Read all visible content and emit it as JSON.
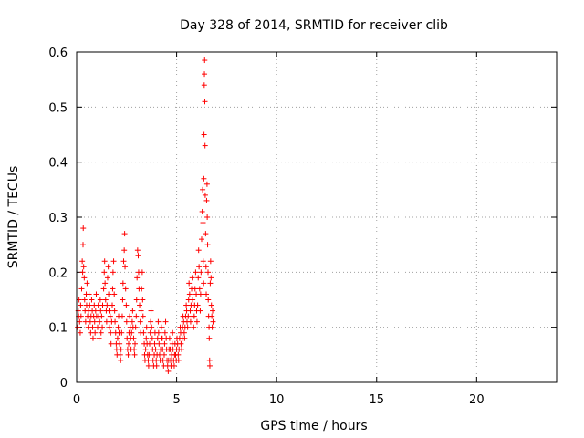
{
  "chart_data": {
    "type": "scatter",
    "title": "Day 328 of 2014, SRMTID for receiver clib",
    "xlabel": "GPS time / hours",
    "ylabel": "SRMTID / TECUs",
    "xlim": [
      0,
      24
    ],
    "ylim": [
      0,
      0.6
    ],
    "xticks": [
      "0",
      "5",
      "10",
      "15",
      "20"
    ],
    "xtick_values": [
      0,
      5,
      10,
      15,
      20
    ],
    "yticks": [
      "0",
      "0.1",
      "0.2",
      "0.3",
      "0.4",
      "0.5",
      "0.6"
    ],
    "ytick_values": [
      0,
      0.1,
      0.2,
      0.3,
      0.4,
      0.5,
      0.6
    ],
    "grid": true,
    "marker": "+",
    "color": "#ff0000",
    "series": [
      {
        "name": "SRMTID",
        "points": [
          [
            0.05,
            0.1
          ],
          [
            0.08,
            0.13
          ],
          [
            0.1,
            0.12
          ],
          [
            0.12,
            0.15
          ],
          [
            0.15,
            0.11
          ],
          [
            0.18,
            0.09
          ],
          [
            0.2,
            0.14
          ],
          [
            0.22,
            0.12
          ],
          [
            0.25,
            0.17
          ],
          [
            0.28,
            0.22
          ],
          [
            0.3,
            0.2
          ],
          [
            0.32,
            0.25
          ],
          [
            0.33,
            0.28
          ],
          [
            0.35,
            0.21
          ],
          [
            0.38,
            0.19
          ],
          [
            0.4,
            0.15
          ],
          [
            0.42,
            0.13
          ],
          [
            0.45,
            0.11
          ],
          [
            0.48,
            0.16
          ],
          [
            0.5,
            0.14
          ],
          [
            0.52,
            0.18
          ],
          [
            0.55,
            0.12
          ],
          [
            0.58,
            0.1
          ],
          [
            0.6,
            0.13
          ],
          [
            0.62,
            0.16
          ],
          [
            0.65,
            0.14
          ],
          [
            0.68,
            0.11
          ],
          [
            0.7,
            0.09
          ],
          [
            0.72,
            0.12
          ],
          [
            0.75,
            0.15
          ],
          [
            0.78,
            0.13
          ],
          [
            0.8,
            0.1
          ],
          [
            0.82,
            0.08
          ],
          [
            0.85,
            0.12
          ],
          [
            0.88,
            0.14
          ],
          [
            0.9,
            0.11
          ],
          [
            0.92,
            0.09
          ],
          [
            0.95,
            0.13
          ],
          [
            0.98,
            0.16
          ],
          [
            1.0,
            0.12
          ],
          [
            1.05,
            0.1
          ],
          [
            1.08,
            0.14
          ],
          [
            1.1,
            0.12
          ],
          [
            1.12,
            0.08
          ],
          [
            1.15,
            0.11
          ],
          [
            1.18,
            0.15
          ],
          [
            1.2,
            0.13
          ],
          [
            1.22,
            0.09
          ],
          [
            1.25,
            0.12
          ],
          [
            1.28,
            0.1
          ],
          [
            1.3,
            0.14
          ],
          [
            1.35,
            0.17
          ],
          [
            1.38,
            0.2
          ],
          [
            1.4,
            0.22
          ],
          [
            1.42,
            0.18
          ],
          [
            1.45,
            0.15
          ],
          [
            1.48,
            0.13
          ],
          [
            1.5,
            0.11
          ],
          [
            1.52,
            0.14
          ],
          [
            1.55,
            0.19
          ],
          [
            1.58,
            0.21
          ],
          [
            1.6,
            0.16
          ],
          [
            1.62,
            0.13
          ],
          [
            1.65,
            0.1
          ],
          [
            1.68,
            0.12
          ],
          [
            1.7,
            0.09
          ],
          [
            1.72,
            0.07
          ],
          [
            1.75,
            0.11
          ],
          [
            1.78,
            0.14
          ],
          [
            1.8,
            0.17
          ],
          [
            1.82,
            0.2
          ],
          [
            1.85,
            0.22
          ],
          [
            1.88,
            0.16
          ],
          [
            1.9,
            0.13
          ],
          [
            1.92,
            0.11
          ],
          [
            1.95,
            0.09
          ],
          [
            1.98,
            0.07
          ],
          [
            2.0,
            0.06
          ],
          [
            2.02,
            0.05
          ],
          [
            2.05,
            0.08
          ],
          [
            2.08,
            0.1
          ],
          [
            2.1,
            0.12
          ],
          [
            2.12,
            0.09
          ],
          [
            2.15,
            0.07
          ],
          [
            2.18,
            0.05
          ],
          [
            2.2,
            0.04
          ],
          [
            2.22,
            0.06
          ],
          [
            2.25,
            0.09
          ],
          [
            2.28,
            0.12
          ],
          [
            2.3,
            0.15
          ],
          [
            2.32,
            0.18
          ],
          [
            2.35,
            0.22
          ],
          [
            2.38,
            0.24
          ],
          [
            2.4,
            0.27
          ],
          [
            2.42,
            0.21
          ],
          [
            2.45,
            0.17
          ],
          [
            2.48,
            0.14
          ],
          [
            2.5,
            0.11
          ],
          [
            2.52,
            0.08
          ],
          [
            2.55,
            0.06
          ],
          [
            2.58,
            0.05
          ],
          [
            2.6,
            0.07
          ],
          [
            2.62,
            0.09
          ],
          [
            2.65,
            0.12
          ],
          [
            2.68,
            0.1
          ],
          [
            2.7,
            0.08
          ],
          [
            2.72,
            0.06
          ],
          [
            2.75,
            0.09
          ],
          [
            2.78,
            0.11
          ],
          [
            2.8,
            0.13
          ],
          [
            2.82,
            0.1
          ],
          [
            2.85,
            0.08
          ],
          [
            2.88,
            0.06
          ],
          [
            2.9,
            0.05
          ],
          [
            2.92,
            0.07
          ],
          [
            2.95,
            0.1
          ],
          [
            2.98,
            0.12
          ],
          [
            3.0,
            0.15
          ],
          [
            3.02,
            0.19
          ],
          [
            3.05,
            0.24
          ],
          [
            3.08,
            0.23
          ],
          [
            3.1,
            0.2
          ],
          [
            3.12,
            0.17
          ],
          [
            3.15,
            0.14
          ],
          [
            3.18,
            0.11
          ],
          [
            3.2,
            0.09
          ],
          [
            3.22,
            0.13
          ],
          [
            3.25,
            0.17
          ],
          [
            3.28,
            0.2
          ],
          [
            3.3,
            0.15
          ],
          [
            3.32,
            0.12
          ],
          [
            3.35,
            0.09
          ],
          [
            3.38,
            0.07
          ],
          [
            3.4,
            0.05
          ],
          [
            3.42,
            0.04
          ],
          [
            3.45,
            0.06
          ],
          [
            3.48,
            0.08
          ],
          [
            3.5,
            0.1
          ],
          [
            3.52,
            0.07
          ],
          [
            3.55,
            0.05
          ],
          [
            3.58,
            0.04
          ],
          [
            3.6,
            0.03
          ],
          [
            3.62,
            0.05
          ],
          [
            3.65,
            0.07
          ],
          [
            3.68,
            0.09
          ],
          [
            3.7,
            0.11
          ],
          [
            3.72,
            0.13
          ],
          [
            3.75,
            0.1
          ],
          [
            3.78,
            0.08
          ],
          [
            3.8,
            0.06
          ],
          [
            3.82,
            0.04
          ],
          [
            3.85,
            0.03
          ],
          [
            3.88,
            0.05
          ],
          [
            3.9,
            0.07
          ],
          [
            3.92,
            0.09
          ],
          [
            3.95,
            0.06
          ],
          [
            3.98,
            0.04
          ],
          [
            4.0,
            0.03
          ],
          [
            4.02,
            0.05
          ],
          [
            4.05,
            0.08
          ],
          [
            4.08,
            0.11
          ],
          [
            4.1,
            0.09
          ],
          [
            4.12,
            0.07
          ],
          [
            4.15,
            0.05
          ],
          [
            4.18,
            0.04
          ],
          [
            4.2,
            0.06
          ],
          [
            4.22,
            0.08
          ],
          [
            4.25,
            0.1
          ],
          [
            4.28,
            0.08
          ],
          [
            4.3,
            0.06
          ],
          [
            4.32,
            0.04
          ],
          [
            4.35,
            0.03
          ],
          [
            4.38,
            0.05
          ],
          [
            4.4,
            0.07
          ],
          [
            4.42,
            0.09
          ],
          [
            4.45,
            0.11
          ],
          [
            4.48,
            0.08
          ],
          [
            4.5,
            0.06
          ],
          [
            4.52,
            0.04
          ],
          [
            4.55,
            0.03
          ],
          [
            4.58,
            0.02
          ],
          [
            4.6,
            0.04
          ],
          [
            4.62,
            0.06
          ],
          [
            4.65,
            0.08
          ],
          [
            4.68,
            0.06
          ],
          [
            4.7,
            0.04
          ],
          [
            4.72,
            0.03
          ],
          [
            4.75,
            0.05
          ],
          [
            4.78,
            0.07
          ],
          [
            4.8,
            0.09
          ],
          [
            4.82,
            0.06
          ],
          [
            4.85,
            0.04
          ],
          [
            4.88,
            0.03
          ],
          [
            4.9,
            0.05
          ],
          [
            4.92,
            0.07
          ],
          [
            4.95,
            0.05
          ],
          [
            4.98,
            0.04
          ],
          [
            5.0,
            0.06
          ],
          [
            5.02,
            0.08
          ],
          [
            5.05,
            0.07
          ],
          [
            5.08,
            0.05
          ],
          [
            5.1,
            0.04
          ],
          [
            5.12,
            0.06
          ],
          [
            5.15,
            0.08
          ],
          [
            5.18,
            0.1
          ],
          [
            5.2,
            0.09
          ],
          [
            5.22,
            0.07
          ],
          [
            5.25,
            0.06
          ],
          [
            5.28,
            0.08
          ],
          [
            5.3,
            0.1
          ],
          [
            5.32,
            0.12
          ],
          [
            5.35,
            0.11
          ],
          [
            5.38,
            0.09
          ],
          [
            5.4,
            0.08
          ],
          [
            5.42,
            0.1
          ],
          [
            5.45,
            0.12
          ],
          [
            5.48,
            0.14
          ],
          [
            5.5,
            0.13
          ],
          [
            5.52,
            0.11
          ],
          [
            5.55,
            0.1
          ],
          [
            5.58,
            0.12
          ],
          [
            5.6,
            0.15
          ],
          [
            5.62,
            0.18
          ],
          [
            5.65,
            0.16
          ],
          [
            5.68,
            0.13
          ],
          [
            5.7,
            0.11
          ],
          [
            5.72,
            0.14
          ],
          [
            5.75,
            0.17
          ],
          [
            5.78,
            0.19
          ],
          [
            5.8,
            0.15
          ],
          [
            5.82,
            0.12
          ],
          [
            5.85,
            0.1
          ],
          [
            5.88,
            0.12
          ],
          [
            5.9,
            0.14
          ],
          [
            5.92,
            0.17
          ],
          [
            5.95,
            0.2
          ],
          [
            5.98,
            0.16
          ],
          [
            6.0,
            0.13
          ],
          [
            6.02,
            0.11
          ],
          [
            6.05,
            0.14
          ],
          [
            6.08,
            0.19
          ],
          [
            6.1,
            0.24
          ],
          [
            6.12,
            0.21
          ],
          [
            6.15,
            0.17
          ],
          [
            6.18,
            0.13
          ],
          [
            6.2,
            0.16
          ],
          [
            6.22,
            0.2
          ],
          [
            6.25,
            0.26
          ],
          [
            6.28,
            0.31
          ],
          [
            6.3,
            0.35
          ],
          [
            6.32,
            0.29
          ],
          [
            6.33,
            0.22
          ],
          [
            6.35,
            0.18
          ],
          [
            6.36,
            0.37
          ],
          [
            6.37,
            0.45
          ],
          [
            6.38,
            0.54
          ],
          [
            6.39,
            0.56
          ],
          [
            6.4,
            0.585
          ],
          [
            6.41,
            0.51
          ],
          [
            6.42,
            0.43
          ],
          [
            6.43,
            0.34
          ],
          [
            6.45,
            0.27
          ],
          [
            6.47,
            0.21
          ],
          [
            6.48,
            0.16
          ],
          [
            6.5,
            0.33
          ],
          [
            6.52,
            0.36
          ],
          [
            6.53,
            0.3
          ],
          [
            6.55,
            0.25
          ],
          [
            6.57,
            0.2
          ],
          [
            6.58,
            0.15
          ],
          [
            6.6,
            0.12
          ],
          [
            6.62,
            0.1
          ],
          [
            6.63,
            0.08
          ],
          [
            6.65,
            0.04
          ],
          [
            6.66,
            0.03
          ],
          [
            6.68,
            0.18
          ],
          [
            6.7,
            0.22
          ],
          [
            6.72,
            0.19
          ],
          [
            6.74,
            0.14
          ],
          [
            6.76,
            0.12
          ],
          [
            6.78,
            0.1
          ],
          [
            6.8,
            0.13
          ],
          [
            6.82,
            0.11
          ]
        ]
      }
    ]
  }
}
